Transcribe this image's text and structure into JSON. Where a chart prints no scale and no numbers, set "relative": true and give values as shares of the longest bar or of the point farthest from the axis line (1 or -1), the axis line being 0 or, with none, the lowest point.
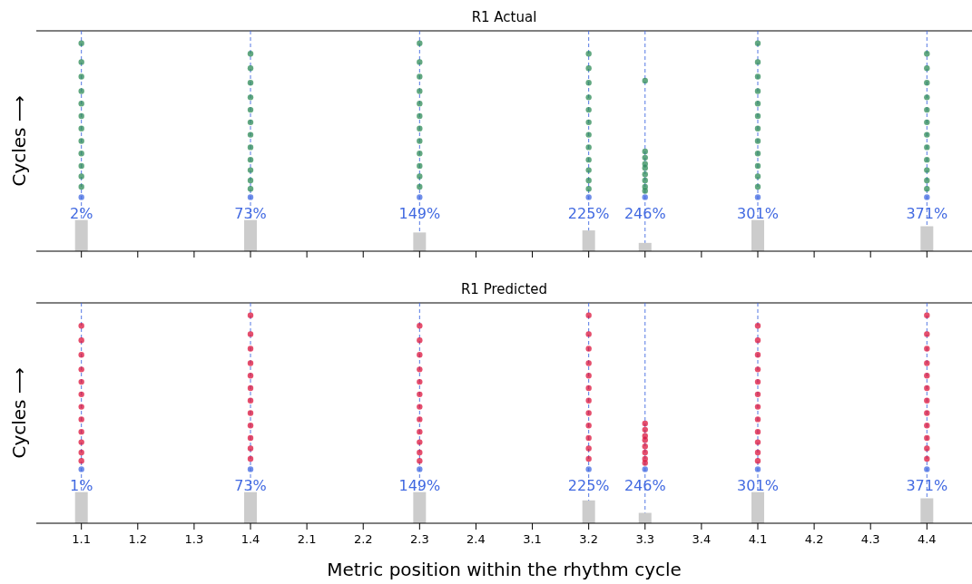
{
  "chart_data": [
    {
      "type": "scatter",
      "title": "R1 Actual",
      "ylabel": "Cycles ⟶",
      "relative": true,
      "marker": "circle",
      "tick_labels": false,
      "categories": [
        "1.1",
        "1.2",
        "1.3",
        "1.4",
        "2.1",
        "2.2",
        "2.3",
        "2.4",
        "3.1",
        "3.2",
        "3.3",
        "3.4",
        "4.1",
        "4.2",
        "4.3",
        "4.4"
      ],
      "ref_lines": [
        {
          "axis": "x",
          "value": "1.1",
          "color": "#4169e1",
          "line_style": "dashed"
        },
        {
          "axis": "x",
          "value": "1.4",
          "color": "#4169e1",
          "line_style": "dashed"
        },
        {
          "axis": "x",
          "value": "2.3",
          "color": "#4169e1",
          "line_style": "dashed"
        },
        {
          "axis": "x",
          "value": "3.2",
          "color": "#4169e1",
          "line_style": "dashed"
        },
        {
          "axis": "x",
          "value": "3.3",
          "color": "#4169e1",
          "line_style": "dashed"
        },
        {
          "axis": "x",
          "value": "4.1",
          "color": "#4169e1",
          "line_style": "dashed"
        },
        {
          "axis": "x",
          "value": "4.4",
          "color": "#4169e1",
          "line_style": "dashed"
        }
      ],
      "series": [
        {
          "type": "bar",
          "color": "#cccccc",
          "values": [
            0.15,
            null,
            null,
            0.15,
            null,
            null,
            0.09,
            null,
            null,
            0.1,
            0.04,
            null,
            0.15,
            null,
            null,
            0.12
          ]
        },
        {
          "color": "#2e8b57",
          "x": [
            "1.1",
            "1.1",
            "1.1",
            "1.1",
            "1.1",
            "1.1",
            "1.1",
            "1.1",
            "1.1",
            "1.1",
            "1.1",
            "1.1",
            "1.4",
            "1.4",
            "1.4",
            "1.4",
            "1.4",
            "1.4",
            "1.4",
            "1.4",
            "1.4",
            "1.4",
            "1.4",
            "1.4",
            "2.3",
            "2.3",
            "2.3",
            "2.3",
            "2.3",
            "2.3",
            "2.3",
            "2.3",
            "2.3",
            "2.3",
            "2.3",
            "2.3",
            "3.2",
            "3.2",
            "3.2",
            "3.2",
            "3.2",
            "3.2",
            "3.2",
            "3.2",
            "3.2",
            "3.2",
            "3.2",
            "3.2",
            "3.3",
            "3.3",
            "3.3",
            "3.3",
            "3.3",
            "3.3",
            "3.3",
            "3.3",
            "3.3",
            "4.1",
            "4.1",
            "4.1",
            "4.1",
            "4.1",
            "4.1",
            "4.1",
            "4.1",
            "4.1",
            "4.1",
            "4.1",
            "4.1",
            "4.4",
            "4.4",
            "4.4",
            "4.4",
            "4.4",
            "4.4",
            "4.4",
            "4.4",
            "4.4",
            "4.4",
            "4.4",
            "4.4"
          ],
          "values": [
            1,
            0.91,
            0.84,
            0.77,
            0.71,
            0.65,
            0.59,
            0.53,
            0.47,
            0.41,
            0.36,
            0.31,
            0.95,
            0.88,
            0.81,
            0.74,
            0.68,
            0.62,
            0.56,
            0.5,
            0.44,
            0.39,
            0.34,
            0.3,
            1,
            0.91,
            0.84,
            0.77,
            0.71,
            0.65,
            0.59,
            0.53,
            0.47,
            0.41,
            0.36,
            0.31,
            0.95,
            0.88,
            0.81,
            0.74,
            0.68,
            0.62,
            0.56,
            0.5,
            0.44,
            0.39,
            0.34,
            0.3,
            0.82,
            0.48,
            0.45,
            0.42,
            0.4,
            0.37,
            0.34,
            0.31,
            0.29,
            1,
            0.91,
            0.84,
            0.77,
            0.71,
            0.65,
            0.59,
            0.53,
            0.47,
            0.41,
            0.36,
            0.31,
            0.95,
            0.88,
            0.81,
            0.74,
            0.68,
            0.62,
            0.56,
            0.5,
            0.44,
            0.39,
            0.34,
            0.3
          ]
        },
        {
          "color": "#4169e1",
          "x": [
            "1.1",
            "1.4",
            "2.3",
            "3.2",
            "3.3",
            "4.1",
            "4.4"
          ],
          "values": [
            0.26,
            0.26,
            0.26,
            0.26,
            0.26,
            0.26,
            0.26
          ]
        }
      ],
      "annotations": [
        {
          "text": "2%",
          "x": "1.1",
          "y": 0.26
        },
        {
          "text": "73%",
          "x": "1.4",
          "y": 0.26
        },
        {
          "text": "149%",
          "x": "2.3",
          "y": 0.26
        },
        {
          "text": "225%",
          "x": "3.2",
          "y": 0.26
        },
        {
          "text": "246%",
          "x": "3.3",
          "y": 0.26
        },
        {
          "text": "301%",
          "x": "4.1",
          "y": 0.26
        },
        {
          "text": "371%",
          "x": "4.4",
          "y": 0.26
        }
      ]
    },
    {
      "type": "scatter",
      "title": "R1 Predicted",
      "ylabel": "Cycles ⟶",
      "xlabel": "Metric position within the rhythm cycle",
      "relative": true,
      "marker": "circle",
      "tick_labels": "x",
      "categories": [
        "1.1",
        "1.2",
        "1.3",
        "1.4",
        "2.1",
        "2.2",
        "2.3",
        "2.4",
        "3.1",
        "3.2",
        "3.3",
        "3.4",
        "4.1",
        "4.2",
        "4.3",
        "4.4"
      ],
      "ref_lines": [
        {
          "axis": "x",
          "value": "1.1",
          "color": "#4169e1",
          "line_style": "dashed"
        },
        {
          "axis": "x",
          "value": "1.4",
          "color": "#4169e1",
          "line_style": "dashed"
        },
        {
          "axis": "x",
          "value": "2.3",
          "color": "#4169e1",
          "line_style": "dashed"
        },
        {
          "axis": "x",
          "value": "3.2",
          "color": "#4169e1",
          "line_style": "dashed"
        },
        {
          "axis": "x",
          "value": "3.3",
          "color": "#4169e1",
          "line_style": "dashed"
        },
        {
          "axis": "x",
          "value": "4.1",
          "color": "#4169e1",
          "line_style": "dashed"
        },
        {
          "axis": "x",
          "value": "4.4",
          "color": "#4169e1",
          "line_style": "dashed"
        }
      ],
      "series": [
        {
          "type": "bar",
          "color": "#cccccc",
          "values": [
            0.15,
            null,
            null,
            0.15,
            null,
            null,
            0.15,
            null,
            null,
            0.11,
            0.05,
            null,
            0.15,
            null,
            null,
            0.12
          ]
        },
        {
          "color": "#dc143c",
          "x": [
            "1.1",
            "1.1",
            "1.1",
            "1.1",
            "1.1",
            "1.1",
            "1.1",
            "1.1",
            "1.1",
            "1.1",
            "1.1",
            "1.1",
            "1.4",
            "1.4",
            "1.4",
            "1.4",
            "1.4",
            "1.4",
            "1.4",
            "1.4",
            "1.4",
            "1.4",
            "1.4",
            "1.4",
            "2.3",
            "2.3",
            "2.3",
            "2.3",
            "2.3",
            "2.3",
            "2.3",
            "2.3",
            "2.3",
            "2.3",
            "2.3",
            "2.3",
            "3.2",
            "3.2",
            "3.2",
            "3.2",
            "3.2",
            "3.2",
            "3.2",
            "3.2",
            "3.2",
            "3.2",
            "3.2",
            "3.2",
            "3.3",
            "3.3",
            "3.3",
            "3.3",
            "3.3",
            "3.3",
            "3.3",
            "3.3",
            "4.1",
            "4.1",
            "4.1",
            "4.1",
            "4.1",
            "4.1",
            "4.1",
            "4.1",
            "4.1",
            "4.1",
            "4.1",
            "4.1",
            "4.4",
            "4.4",
            "4.4",
            "4.4",
            "4.4",
            "4.4",
            "4.4",
            "4.4",
            "4.4",
            "4.4",
            "4.4",
            "4.4"
          ],
          "values": [
            0.95,
            0.88,
            0.81,
            0.74,
            0.68,
            0.62,
            0.56,
            0.5,
            0.44,
            0.39,
            0.34,
            0.3,
            1,
            0.91,
            0.84,
            0.77,
            0.71,
            0.65,
            0.59,
            0.53,
            0.47,
            0.41,
            0.36,
            0.31,
            0.95,
            0.88,
            0.81,
            0.74,
            0.68,
            0.62,
            0.56,
            0.5,
            0.44,
            0.39,
            0.34,
            0.3,
            1,
            0.91,
            0.84,
            0.77,
            0.71,
            0.65,
            0.59,
            0.53,
            0.47,
            0.41,
            0.36,
            0.31,
            0.48,
            0.45,
            0.42,
            0.4,
            0.37,
            0.34,
            0.31,
            0.29,
            0.95,
            0.88,
            0.81,
            0.74,
            0.68,
            0.62,
            0.56,
            0.5,
            0.44,
            0.39,
            0.34,
            0.3,
            1,
            0.91,
            0.84,
            0.77,
            0.71,
            0.65,
            0.59,
            0.53,
            0.47,
            0.41,
            0.36,
            0.31
          ]
        },
        {
          "color": "#4169e1",
          "x": [
            "1.1",
            "1.4",
            "2.3",
            "3.2",
            "3.3",
            "4.1",
            "4.4"
          ],
          "values": [
            0.26,
            0.26,
            0.26,
            0.26,
            0.26,
            0.26,
            0.26
          ]
        }
      ],
      "annotations": [
        {
          "text": "1%",
          "x": "1.1",
          "y": 0.26
        },
        {
          "text": "73%",
          "x": "1.4",
          "y": 0.26
        },
        {
          "text": "149%",
          "x": "2.3",
          "y": 0.26
        },
        {
          "text": "225%",
          "x": "3.2",
          "y": 0.26
        },
        {
          "text": "246%",
          "x": "3.3",
          "y": 0.26
        },
        {
          "text": "301%",
          "x": "4.1",
          "y": 0.26
        },
        {
          "text": "371%",
          "x": "4.4",
          "y": 0.26
        }
      ]
    }
  ]
}
